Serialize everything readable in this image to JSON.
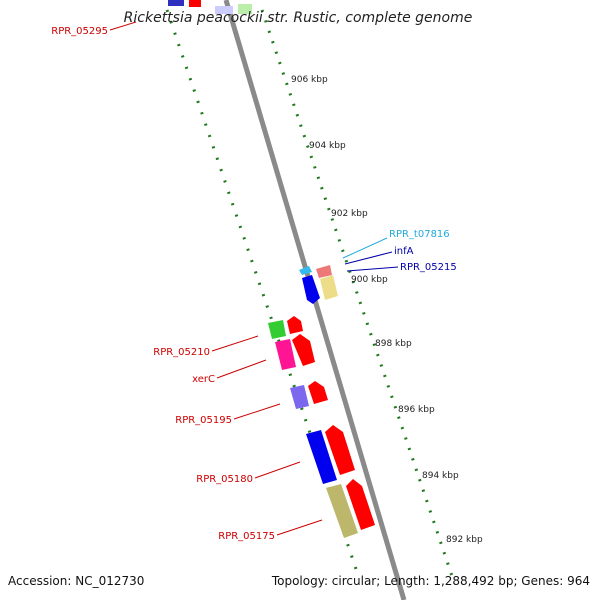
{
  "title": "Rickettsia peacockii str. Rustic, complete genome",
  "footer": {
    "accession": "Accession: NC_012730",
    "summary": "Topology: circular; Length: 1,288,492 bp; Genes: 964"
  },
  "colors": {
    "backbone": "#8a8a8a",
    "tick": "#1f7a1f",
    "label_red": "#cc0000",
    "label_blue": "#0000aa",
    "label_cyan": "#22aadd",
    "red": "#ff0000",
    "blue": "#0000ee",
    "magenta": "#ff1493",
    "green": "#33cc33",
    "purple": "#7b68ee",
    "khaki": "#bdb76b",
    "yellow": "#eedd88",
    "salmon": "#ee7777",
    "cyan": "#33bbee"
  },
  "ticks": [
    {
      "label": "906 kbp"
    },
    {
      "label": "904 kbp"
    },
    {
      "label": "902 kbp"
    },
    {
      "label": "900 kbp"
    },
    {
      "label": "898 kbp"
    },
    {
      "label": "896 kbp"
    },
    {
      "label": "894 kbp"
    },
    {
      "label": "892 kbp"
    }
  ],
  "genes": [
    {
      "label": "RPR_05295"
    },
    {
      "label": "RPR_05210"
    },
    {
      "label": "xerC"
    },
    {
      "label": "RPR_05195"
    },
    {
      "label": "RPR_05180"
    },
    {
      "label": "RPR_05175"
    },
    {
      "label": "RPR_t07816"
    },
    {
      "label": "infA"
    },
    {
      "label": "RPR_05215"
    }
  ]
}
